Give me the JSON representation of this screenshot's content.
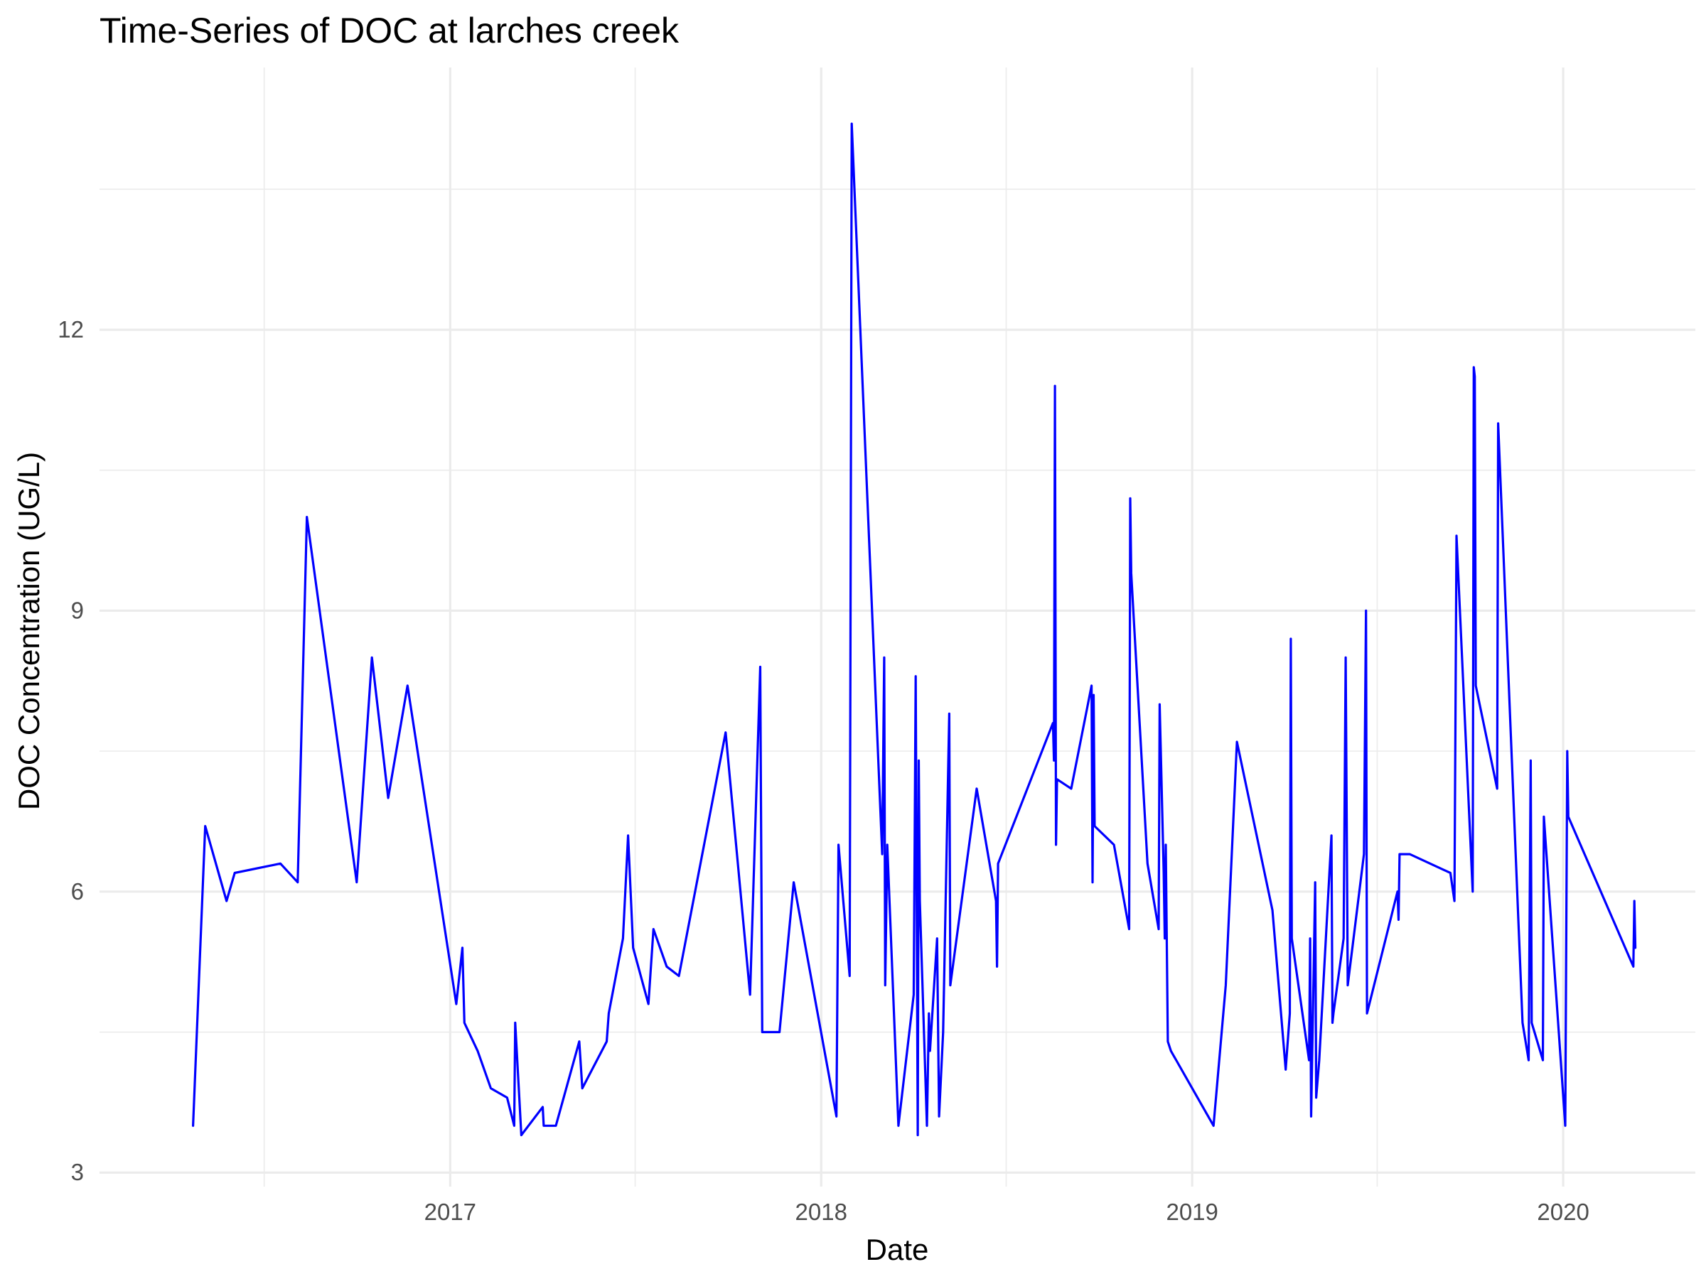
{
  "chart_data": {
    "type": "line",
    "title": "Time-Series of DOC at larches creek",
    "xlabel": "Date",
    "ylabel": "DOC Concentration (UG/L)",
    "x_ticks": [
      "2017",
      "2018",
      "2019",
      "2020"
    ],
    "y_ticks": [
      "3",
      "6",
      "9",
      "12"
    ],
    "xlim": [
      "2016-01-22",
      "2020-05-10"
    ],
    "ylim": [
      2.85,
      14.8
    ],
    "grid": true,
    "legend": "none",
    "color": "#0000ff",
    "series": [
      {
        "x": [
          "2016-04-23",
          "2016-05-05",
          "2016-05-26",
          "2016-06-03",
          "2016-07-18",
          "2016-08-04",
          "2016-08-13",
          "2016-10-01",
          "2016-10-16",
          "2016-11-01",
          "2016-11-20",
          "2017-01-07",
          "2017-01-13",
          "2017-01-15",
          "2017-01-28",
          "2017-02-10",
          "2017-02-26",
          "2017-03-05",
          "2017-03-06",
          "2017-03-12",
          "2017-04-02",
          "2017-04-03",
          "2017-04-15",
          "2017-05-08",
          "2017-05-11",
          "2017-06-04",
          "2017-06-06",
          "2017-06-20",
          "2017-06-25",
          "2017-06-30",
          "2017-07-15",
          "2017-07-20",
          "2017-08-02",
          "2017-08-14",
          "2017-09-29",
          "2017-10-23",
          "2017-11-02",
          "2017-11-04",
          "2017-11-21",
          "2017-12-05",
          "2018-01-16",
          "2018-01-18",
          "2018-01-29",
          "2018-01-31",
          "2018-03-02",
          "2018-03-04",
          "2018-03-05",
          "2018-03-07",
          "2018-03-18",
          "2018-04-02",
          "2018-04-04",
          "2018-04-06",
          "2018-04-07",
          "2018-04-08",
          "2018-04-15",
          "2018-04-17",
          "2018-04-18",
          "2018-04-25",
          "2018-04-27",
          "2018-05-01",
          "2018-05-07",
          "2018-05-08",
          "2018-06-03",
          "2018-06-22",
          "2018-06-23",
          "2018-06-24",
          "2018-08-17",
          "2018-08-18",
          "2018-08-19",
          "2018-08-20",
          "2018-08-21",
          "2018-09-04",
          "2018-09-24",
          "2018-09-25",
          "2018-09-26",
          "2018-09-27",
          "2018-10-16",
          "2018-10-31",
          "2018-11-01",
          "2018-11-02",
          "2018-11-18",
          "2018-11-29",
          "2018-11-30",
          "2018-12-04",
          "2018-12-05",
          "2018-12-06",
          "2018-12-08",
          "2018-12-11",
          "2019-01-22",
          "2019-02-03",
          "2019-02-14",
          "2019-03-21",
          "2019-04-03",
          "2019-04-07",
          "2019-04-08",
          "2019-04-09",
          "2019-04-26",
          "2019-04-27",
          "2019-04-28",
          "2019-05-02",
          "2019-05-03",
          "2019-05-06",
          "2019-05-18",
          "2019-05-19",
          "2019-05-20",
          "2019-05-30",
          "2019-06-01",
          "2019-06-03",
          "2019-06-19",
          "2019-06-21",
          "2019-06-22",
          "2019-07-22",
          "2019-07-23",
          "2019-07-24",
          "2019-08-03",
          "2019-09-12",
          "2019-09-16",
          "2019-09-18",
          "2019-10-04",
          "2019-10-05",
          "2019-10-06",
          "2019-10-07",
          "2019-10-28",
          "2019-10-29",
          "2019-11-22",
          "2019-11-28",
          "2019-11-30",
          "2019-12-01",
          "2019-12-12",
          "2019-12-13",
          "2020-01-03",
          "2020-01-05",
          "2020-01-06",
          "2020-03-10",
          "2020-03-11",
          "2020-03-12"
        ],
        "y": [
          3.5,
          6.7,
          5.9,
          6.2,
          6.3,
          6.1,
          10.0,
          6.1,
          8.5,
          7.0,
          8.2,
          4.8,
          5.4,
          4.6,
          4.3,
          3.9,
          3.8,
          3.5,
          4.6,
          3.4,
          3.7,
          3.5,
          3.5,
          4.4,
          3.9,
          4.4,
          4.7,
          5.5,
          6.6,
          5.4,
          4.8,
          5.6,
          5.2,
          5.1,
          7.7,
          4.9,
          8.4,
          4.5,
          4.5,
          6.1,
          3.6,
          6.5,
          5.1,
          14.2,
          6.4,
          8.5,
          5.0,
          6.5,
          3.5,
          4.9,
          8.3,
          3.4,
          7.4,
          5.9,
          3.5,
          4.7,
          4.3,
          5.5,
          3.6,
          4.5,
          7.9,
          5.0,
          7.1,
          5.9,
          5.2,
          6.3,
          7.8,
          7.4,
          11.4,
          6.5,
          7.2,
          7.1,
          8.2,
          6.1,
          8.1,
          6.7,
          6.5,
          5.6,
          10.2,
          9.4,
          6.3,
          5.6,
          8.0,
          6.2,
          5.5,
          6.5,
          4.4,
          4.3,
          3.5,
          5.0,
          7.6,
          5.8,
          4.1,
          4.7,
          8.7,
          5.5,
          4.2,
          5.5,
          3.6,
          6.1,
          3.8,
          4.2,
          6.6,
          4.6,
          4.7,
          5.5,
          8.5,
          5.0,
          6.4,
          9.0,
          4.7,
          6.0,
          5.7,
          6.4,
          6.4,
          6.2,
          5.9,
          9.8,
          6.0,
          11.6,
          11.5,
          8.2,
          7.1,
          11.0,
          4.6,
          4.2,
          7.4,
          4.6,
          4.2,
          6.8,
          3.5,
          7.5,
          6.8,
          5.2,
          5.9,
          5.4
        ]
      }
    ]
  }
}
